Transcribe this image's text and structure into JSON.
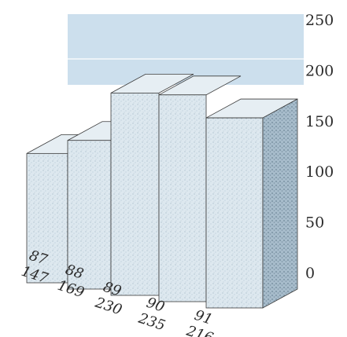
{
  "chart_data": {
    "type": "bar",
    "categories": [
      "87",
      "88",
      "89",
      "90",
      "91"
    ],
    "values": [
      147,
      169,
      230,
      235,
      216
    ],
    "value_labels": [
      "147",
      "169",
      "230",
      "235",
      "216"
    ],
    "ylim": [
      0,
      250
    ],
    "yticks": [
      "0",
      "50",
      "100",
      "150",
      "200",
      "250"
    ],
    "grid": false,
    "style": "3d",
    "colors": {
      "front": "#dde8ef",
      "top": "#e6eef3",
      "side": "#9fb6c6",
      "backdrop": "#c6dceb",
      "edge": "#3a3a3a"
    }
  }
}
